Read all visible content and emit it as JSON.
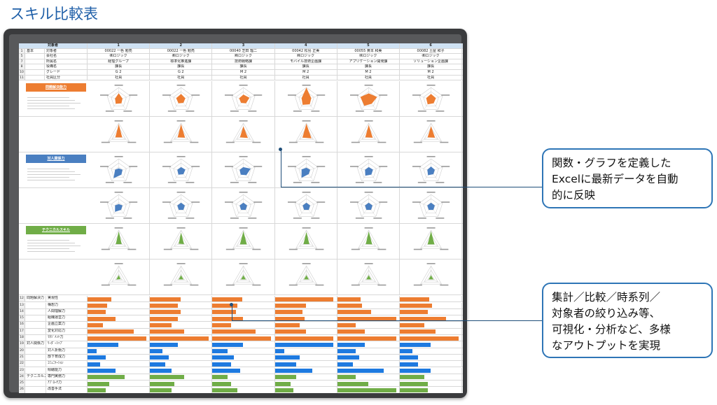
{
  "page_title": "スキル比較表",
  "sheet": {
    "header": {
      "label": "対象者",
      "numbers": [
        "1",
        "2",
        "3",
        "4",
        "5",
        "6"
      ]
    },
    "info_rows": [
      {
        "row": "1",
        "group": "基本",
        "label": "対象者",
        "values": [
          "00022 一色 勉亮",
          "00022 一色 勉亮",
          "00040 芝田 瑠二",
          "00042 松島 正美",
          "00055 黄本 和美",
          "00082 土屋 和子"
        ]
      },
      {
        "row": "5",
        "group": "",
        "label": "会社名",
        "values": [
          "㈱ロジック",
          "㈱ロジック",
          "㈱ロジック",
          "㈱ロジック",
          "㈱ロジック",
          "㈱ロジック"
        ]
      },
      {
        "row": "7",
        "group": "",
        "label": "所属名",
        "values": [
          "経理グループ",
          "標準化推進課",
          "技術戦略課",
          "モバイル技術企画課",
          "アプリケーション開発課",
          "ソリューション企画課"
        ]
      },
      {
        "row": "8",
        "group": "",
        "label": "役職名",
        "values": [
          "課長",
          "課長",
          "課長",
          "課長",
          "課長",
          "課長"
        ]
      },
      {
        "row": "10",
        "group": "",
        "label": "グレード",
        "values": [
          "G 2",
          "G 2",
          "M 2",
          "M 2",
          "M 2",
          "M 2"
        ]
      },
      {
        "row": "11",
        "group": "",
        "label": "社員区分",
        "values": [
          "社員",
          "社員",
          "社員",
          "社員",
          "社員",
          "社員"
        ]
      }
    ],
    "categories": [
      {
        "name": "問題解決能力",
        "color": "#ed7d31"
      },
      {
        "name": "対人関係力",
        "color": "#4a7fc1"
      },
      {
        "name": "テクニカルスキル",
        "color": "#70ad47"
      }
    ],
    "bar_rows": [
      {
        "row": "12",
        "group": "問題解決力",
        "label": "実現性",
        "color": "#ed7d31",
        "values": [
          0.38,
          0.5,
          0.48,
          0.95,
          0.38,
          0.48
        ]
      },
      {
        "row": "13",
        "group": "",
        "label": "構想力",
        "color": "#ed7d31",
        "values": [
          0.32,
          0.45,
          0.4,
          0.5,
          0.4,
          0.52
        ]
      },
      {
        "row": "14",
        "group": "",
        "label": "人間理解力",
        "color": "#ed7d31",
        "values": [
          0.3,
          0.5,
          0.38,
          0.45,
          0.55,
          0.45
        ]
      },
      {
        "row": "15",
        "group": "",
        "label": "組織運営力",
        "color": "#ed7d31",
        "values": [
          0.45,
          0.45,
          0.5,
          0.48,
          0.95,
          0.75
        ]
      },
      {
        "row": "16",
        "group": "",
        "label": "企画立案力",
        "color": "#ed7d31",
        "values": [
          0.25,
          0.35,
          0.3,
          0.4,
          0.3,
          0.4
        ]
      },
      {
        "row": "17",
        "group": "",
        "label": "変化対応力",
        "color": "#ed7d31",
        "values": [
          0.75,
          0.55,
          0.7,
          0.5,
          0.45,
          0.58
        ]
      },
      {
        "row": "18",
        "group": "",
        "label": "ﾏﾈｼﾞﾒﾝﾄ力",
        "color": "#ed7d31",
        "values": [
          0.95,
          0.95,
          0.95,
          0.95,
          0.95,
          0.95
        ]
      },
      {
        "row": "19",
        "group": "対人関係力",
        "label": "ﾘｰﾀﾞｰｼｯﾌﾟ",
        "color": "#1e7ae0",
        "values": [
          0.5,
          0.45,
          0.5,
          0.95,
          0.45,
          0.5
        ]
      },
      {
        "row": "20",
        "group": "",
        "label": "対人折衝力",
        "color": "#1e7ae0",
        "values": [
          0.15,
          0.2,
          0.25,
          0.15,
          0.3,
          0.2
        ]
      },
      {
        "row": "21",
        "group": "",
        "label": "部下育成力",
        "color": "#1e7ae0",
        "values": [
          0.3,
          0.3,
          0.35,
          0.4,
          0.35,
          0.3
        ]
      },
      {
        "row": "22",
        "group": "",
        "label": "ｺﾐｭﾆｹｰｼｮﾝ",
        "color": "#1e7ae0",
        "values": [
          0.2,
          0.25,
          0.3,
          0.35,
          0.25,
          0.3
        ]
      },
      {
        "row": "23",
        "group": "",
        "label": "傾聴能力",
        "color": "#1e7ae0",
        "values": [
          0.45,
          0.35,
          0.45,
          0.6,
          0.75,
          0.5
        ]
      },
      {
        "row": "24",
        "group": "テクニカルスキル",
        "label": "専門実務力",
        "color": "#70ad47",
        "values": [
          0.6,
          0.55,
          0.25,
          0.35,
          0.3,
          0.4
        ]
      },
      {
        "row": "25",
        "group": "",
        "label": "ｱﾌﾟﾛｰﾁ力",
        "color": "#70ad47",
        "values": [
          0.35,
          0.4,
          0.3,
          0.25,
          0.5,
          0.45
        ]
      },
      {
        "row": "26",
        "group": "",
        "label": "改善手法",
        "color": "#70ad47",
        "values": [
          0.3,
          0.35,
          0.4,
          0.3,
          0.95,
          0.45
        ]
      }
    ]
  },
  "callouts": [
    {
      "lines": [
        "関数・グラフを定義した",
        "Excelに最新データを自動",
        "的に反映"
      ]
    },
    {
      "lines": [
        "集計／比較／時系列／",
        "対象者の絞り込み等、",
        "可視化・分析など、多様",
        "なアウトプットを実現"
      ]
    }
  ],
  "colors": {
    "accent": "#2e75b6",
    "orange": "#ed7d31",
    "blue": "#1e7ae0",
    "green": "#70ad47",
    "header": "#cfe2f3"
  }
}
